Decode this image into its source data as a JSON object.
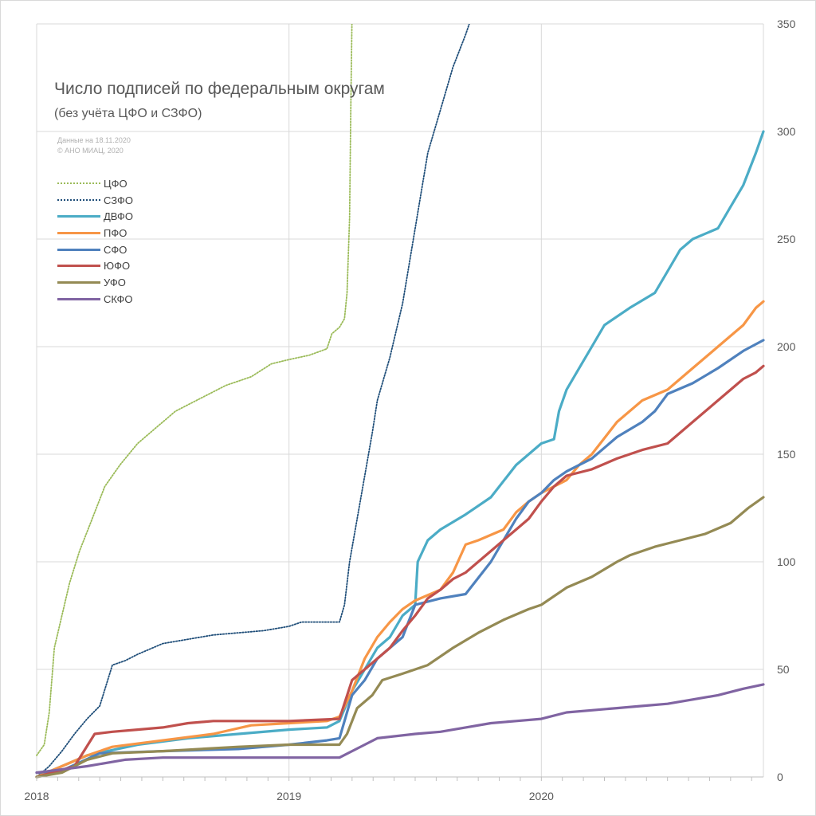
{
  "chart_data": {
    "type": "line",
    "title": "Число подписей по федеральным округам",
    "subtitle": "(без учёта ЦФО и СЗФО)",
    "notes": [
      "Данные на 18.11.2020",
      "© АНО МИАЦ, 2020"
    ],
    "x_ticks": [
      "2018",
      "2019",
      "2020"
    ],
    "x_range": [
      2018.0,
      2020.88
    ],
    "y_ticks": [
      "0",
      "50",
      "100",
      "150",
      "200",
      "250",
      "300",
      "350"
    ],
    "ylim": [
      0,
      350
    ],
    "y_axis_side": "right",
    "grid": true,
    "legend_position": "top-left",
    "series": [
      {
        "name": "ЦФО",
        "color": "#9bbb59",
        "style": "dotted",
        "points": [
          [
            2018.0,
            10
          ],
          [
            2018.03,
            15
          ],
          [
            2018.05,
            30
          ],
          [
            2018.07,
            60
          ],
          [
            2018.1,
            75
          ],
          [
            2018.13,
            90
          ],
          [
            2018.17,
            105
          ],
          [
            2018.22,
            120
          ],
          [
            2018.27,
            135
          ],
          [
            2018.33,
            145
          ],
          [
            2018.4,
            155
          ],
          [
            2018.47,
            162
          ],
          [
            2018.55,
            170
          ],
          [
            2018.65,
            176
          ],
          [
            2018.75,
            182
          ],
          [
            2018.85,
            186
          ],
          [
            2018.93,
            192
          ],
          [
            2019.0,
            194
          ],
          [
            2019.08,
            196
          ],
          [
            2019.15,
            199
          ],
          [
            2019.17,
            206
          ],
          [
            2019.2,
            209
          ],
          [
            2019.22,
            213
          ],
          [
            2019.23,
            225
          ],
          [
            2019.24,
            260
          ],
          [
            2019.245,
            310
          ],
          [
            2019.25,
            355
          ]
        ]
      },
      {
        "name": "СЗФО",
        "color": "#1f4e79",
        "style": "dotted",
        "points": [
          [
            2018.0,
            0
          ],
          [
            2018.05,
            5
          ],
          [
            2018.1,
            12
          ],
          [
            2018.15,
            20
          ],
          [
            2018.2,
            27
          ],
          [
            2018.25,
            33
          ],
          [
            2018.3,
            52
          ],
          [
            2018.35,
            54
          ],
          [
            2018.4,
            57
          ],
          [
            2018.5,
            62
          ],
          [
            2018.6,
            64
          ],
          [
            2018.7,
            66
          ],
          [
            2018.8,
            67
          ],
          [
            2018.9,
            68
          ],
          [
            2019.0,
            70
          ],
          [
            2019.05,
            72
          ],
          [
            2019.2,
            72
          ],
          [
            2019.22,
            80
          ],
          [
            2019.24,
            100
          ],
          [
            2019.27,
            120
          ],
          [
            2019.3,
            140
          ],
          [
            2019.33,
            160
          ],
          [
            2019.35,
            175
          ],
          [
            2019.4,
            195
          ],
          [
            2019.45,
            220
          ],
          [
            2019.5,
            255
          ],
          [
            2019.55,
            290
          ],
          [
            2019.6,
            310
          ],
          [
            2019.65,
            330
          ],
          [
            2019.7,
            345
          ],
          [
            2019.72,
            352
          ]
        ]
      },
      {
        "name": "ДВФО",
        "color": "#4bacc6",
        "style": "solid",
        "points": [
          [
            2018.0,
            0
          ],
          [
            2018.1,
            5
          ],
          [
            2018.2,
            10
          ],
          [
            2018.4,
            15
          ],
          [
            2018.6,
            18
          ],
          [
            2018.8,
            20
          ],
          [
            2019.0,
            22
          ],
          [
            2019.15,
            23
          ],
          [
            2019.2,
            26
          ],
          [
            2019.25,
            40
          ],
          [
            2019.3,
            50
          ],
          [
            2019.35,
            60
          ],
          [
            2019.4,
            65
          ],
          [
            2019.45,
            75
          ],
          [
            2019.5,
            80
          ],
          [
            2019.51,
            100
          ],
          [
            2019.55,
            110
          ],
          [
            2019.6,
            115
          ],
          [
            2019.7,
            122
          ],
          [
            2019.8,
            130
          ],
          [
            2019.9,
            145
          ],
          [
            2020.0,
            155
          ],
          [
            2020.05,
            157
          ],
          [
            2020.07,
            170
          ],
          [
            2020.1,
            180
          ],
          [
            2020.15,
            190
          ],
          [
            2020.2,
            200
          ],
          [
            2020.25,
            210
          ],
          [
            2020.35,
            218
          ],
          [
            2020.45,
            225
          ],
          [
            2020.5,
            235
          ],
          [
            2020.55,
            245
          ],
          [
            2020.6,
            250
          ],
          [
            2020.7,
            255
          ],
          [
            2020.75,
            265
          ],
          [
            2020.8,
            275
          ],
          [
            2020.85,
            290
          ],
          [
            2020.88,
            300
          ]
        ]
      },
      {
        "name": "ПФО",
        "color": "#f79646",
        "style": "solid",
        "points": [
          [
            2018.0,
            0
          ],
          [
            2018.1,
            5
          ],
          [
            2018.2,
            10
          ],
          [
            2018.3,
            14
          ],
          [
            2018.5,
            17
          ],
          [
            2018.7,
            20
          ],
          [
            2018.85,
            24
          ],
          [
            2019.0,
            25
          ],
          [
            2019.15,
            26
          ],
          [
            2019.2,
            28
          ],
          [
            2019.25,
            40
          ],
          [
            2019.3,
            55
          ],
          [
            2019.35,
            65
          ],
          [
            2019.4,
            72
          ],
          [
            2019.45,
            78
          ],
          [
            2019.5,
            82
          ],
          [
            2019.6,
            87
          ],
          [
            2019.65,
            95
          ],
          [
            2019.7,
            108
          ],
          [
            2019.75,
            110
          ],
          [
            2019.85,
            115
          ],
          [
            2019.9,
            123
          ],
          [
            2019.95,
            128
          ],
          [
            2020.0,
            132
          ],
          [
            2020.1,
            138
          ],
          [
            2020.15,
            145
          ],
          [
            2020.2,
            150
          ],
          [
            2020.3,
            165
          ],
          [
            2020.4,
            175
          ],
          [
            2020.5,
            180
          ],
          [
            2020.6,
            190
          ],
          [
            2020.7,
            200
          ],
          [
            2020.75,
            205
          ],
          [
            2020.8,
            210
          ],
          [
            2020.85,
            218
          ],
          [
            2020.88,
            221
          ]
        ]
      },
      {
        "name": "СФО",
        "color": "#4f81bd",
        "style": "solid",
        "points": [
          [
            2018.0,
            2
          ],
          [
            2018.1,
            3
          ],
          [
            2018.25,
            11
          ],
          [
            2018.5,
            12
          ],
          [
            2018.8,
            13
          ],
          [
            2019.0,
            15
          ],
          [
            2019.15,
            17
          ],
          [
            2019.2,
            18
          ],
          [
            2019.25,
            38
          ],
          [
            2019.3,
            45
          ],
          [
            2019.35,
            55
          ],
          [
            2019.4,
            60
          ],
          [
            2019.45,
            65
          ],
          [
            2019.5,
            80
          ],
          [
            2019.6,
            83
          ],
          [
            2019.7,
            85
          ],
          [
            2019.8,
            100
          ],
          [
            2019.85,
            110
          ],
          [
            2019.9,
            120
          ],
          [
            2019.95,
            128
          ],
          [
            2020.0,
            132
          ],
          [
            2020.05,
            138
          ],
          [
            2020.1,
            142
          ],
          [
            2020.2,
            148
          ],
          [
            2020.3,
            158
          ],
          [
            2020.4,
            165
          ],
          [
            2020.45,
            170
          ],
          [
            2020.5,
            178
          ],
          [
            2020.6,
            183
          ],
          [
            2020.7,
            190
          ],
          [
            2020.8,
            198
          ],
          [
            2020.88,
            203
          ]
        ]
      },
      {
        "name": "ЮФО",
        "color": "#c0504d",
        "style": "solid",
        "points": [
          [
            2018.0,
            0
          ],
          [
            2018.15,
            5
          ],
          [
            2018.23,
            20
          ],
          [
            2018.3,
            21
          ],
          [
            2018.4,
            22
          ],
          [
            2018.5,
            23
          ],
          [
            2018.6,
            25
          ],
          [
            2018.7,
            26
          ],
          [
            2019.0,
            26
          ],
          [
            2019.2,
            27
          ],
          [
            2019.25,
            45
          ],
          [
            2019.3,
            50
          ],
          [
            2019.35,
            55
          ],
          [
            2019.4,
            60
          ],
          [
            2019.45,
            68
          ],
          [
            2019.5,
            75
          ],
          [
            2019.55,
            83
          ],
          [
            2019.6,
            87
          ],
          [
            2019.65,
            92
          ],
          [
            2019.7,
            95
          ],
          [
            2019.8,
            105
          ],
          [
            2019.85,
            110
          ],
          [
            2019.9,
            115
          ],
          [
            2019.95,
            120
          ],
          [
            2020.0,
            128
          ],
          [
            2020.05,
            135
          ],
          [
            2020.1,
            140
          ],
          [
            2020.2,
            143
          ],
          [
            2020.3,
            148
          ],
          [
            2020.4,
            152
          ],
          [
            2020.5,
            155
          ],
          [
            2020.55,
            160
          ],
          [
            2020.6,
            165
          ],
          [
            2020.7,
            175
          ],
          [
            2020.8,
            185
          ],
          [
            2020.85,
            188
          ],
          [
            2020.88,
            191
          ]
        ]
      },
      {
        "name": "УФО",
        "color": "#948a54",
        "style": "solid",
        "points": [
          [
            2018.0,
            0
          ],
          [
            2018.1,
            2
          ],
          [
            2018.2,
            8
          ],
          [
            2018.3,
            11
          ],
          [
            2018.5,
            12
          ],
          [
            2018.8,
            14
          ],
          [
            2019.0,
            15
          ],
          [
            2019.2,
            15
          ],
          [
            2019.23,
            20
          ],
          [
            2019.27,
            32
          ],
          [
            2019.33,
            38
          ],
          [
            2019.37,
            45
          ],
          [
            2019.45,
            48
          ],
          [
            2019.55,
            52
          ],
          [
            2019.65,
            60
          ],
          [
            2019.75,
            67
          ],
          [
            2019.85,
            73
          ],
          [
            2019.95,
            78
          ],
          [
            2020.0,
            80
          ],
          [
            2020.1,
            88
          ],
          [
            2020.2,
            93
          ],
          [
            2020.3,
            100
          ],
          [
            2020.35,
            103
          ],
          [
            2020.45,
            107
          ],
          [
            2020.55,
            110
          ],
          [
            2020.65,
            113
          ],
          [
            2020.75,
            118
          ],
          [
            2020.82,
            125
          ],
          [
            2020.88,
            130
          ]
        ]
      },
      {
        "name": "СКФО",
        "color": "#8064a2",
        "style": "solid",
        "points": [
          [
            2018.0,
            2
          ],
          [
            2018.2,
            5
          ],
          [
            2018.35,
            8
          ],
          [
            2018.5,
            9
          ],
          [
            2019.0,
            9
          ],
          [
            2019.2,
            9
          ],
          [
            2019.3,
            15
          ],
          [
            2019.35,
            18
          ],
          [
            2019.5,
            20
          ],
          [
            2019.6,
            21
          ],
          [
            2019.7,
            23
          ],
          [
            2019.8,
            25
          ],
          [
            2019.9,
            26
          ],
          [
            2020.0,
            27
          ],
          [
            2020.1,
            30
          ],
          [
            2020.2,
            31
          ],
          [
            2020.3,
            32
          ],
          [
            2020.4,
            33
          ],
          [
            2020.5,
            34
          ],
          [
            2020.6,
            36
          ],
          [
            2020.7,
            38
          ],
          [
            2020.8,
            41
          ],
          [
            2020.88,
            43
          ]
        ]
      }
    ]
  }
}
